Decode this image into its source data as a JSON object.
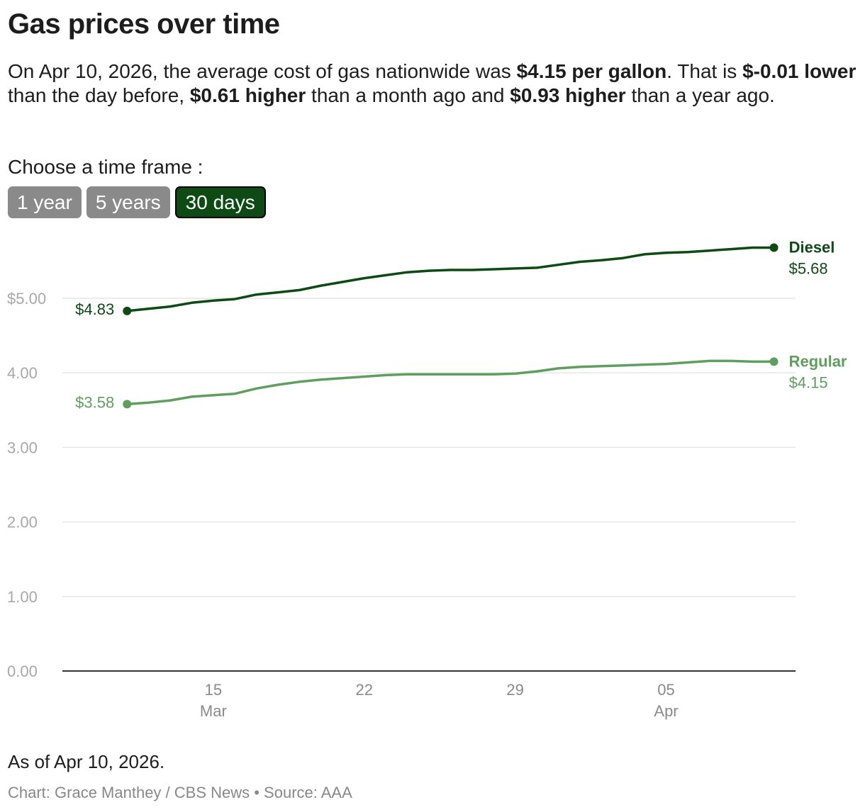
{
  "title": "Gas prices over time",
  "description": {
    "p1": "On Apr 10, 2026, the average cost of gas nationwide was ",
    "b1": "$4.15 per gallon",
    "p2": ". That is ",
    "b2": "$-0.01 lower",
    "p3": " than the day before, ",
    "b3": "$0.61 higher",
    "p4": " than a month ago and ",
    "b4": "$0.93 higher",
    "p5": " than a year ago."
  },
  "timeframe": {
    "label": "Choose a time frame :",
    "options": [
      "1 year",
      "5 years",
      "30 days"
    ],
    "selected": "30 days"
  },
  "note": "As of Apr 10, 2026.",
  "credit": "Chart: Grace Manthey / CBS News • Source: AAA",
  "colors": {
    "diesel": "#0d4a14",
    "regular": "#5f9e5f",
    "grid": "#e6e6e6",
    "axis": "#333333"
  },
  "chart_data": {
    "type": "line",
    "x_label": "",
    "y_label": "",
    "ylim": [
      0,
      5.8
    ],
    "y_ticks": [
      {
        "value": 0,
        "label": "0.00"
      },
      {
        "value": 1,
        "label": "1.00"
      },
      {
        "value": 2,
        "label": "2.00"
      },
      {
        "value": 3,
        "label": "3.00"
      },
      {
        "value": 4,
        "label": "4.00"
      },
      {
        "value": 5,
        "label": "$5.00"
      }
    ],
    "x": [
      "2026-03-11",
      "2026-03-12",
      "2026-03-13",
      "2026-03-14",
      "2026-03-15",
      "2026-03-16",
      "2026-03-17",
      "2026-03-18",
      "2026-03-19",
      "2026-03-20",
      "2026-03-21",
      "2026-03-22",
      "2026-03-23",
      "2026-03-24",
      "2026-03-25",
      "2026-03-26",
      "2026-03-27",
      "2026-03-28",
      "2026-03-29",
      "2026-03-30",
      "2026-03-31",
      "2026-04-01",
      "2026-04-02",
      "2026-04-03",
      "2026-04-04",
      "2026-04-05",
      "2026-04-06",
      "2026-04-07",
      "2026-04-08",
      "2026-04-09",
      "2026-04-10"
    ],
    "xlim": [
      "2026-03-08",
      "2026-04-11"
    ],
    "x_ticks": [
      {
        "date": "2026-03-15",
        "label": "15",
        "sublabel": "Mar"
      },
      {
        "date": "2026-03-22",
        "label": "22",
        "sublabel": ""
      },
      {
        "date": "2026-03-29",
        "label": "29",
        "sublabel": ""
      },
      {
        "date": "2026-04-05",
        "label": "05",
        "sublabel": "Apr"
      }
    ],
    "series": [
      {
        "name": "Diesel",
        "key": "diesel",
        "start_label": "$4.83",
        "end_label": "$5.68",
        "values": [
          4.83,
          4.86,
          4.89,
          4.94,
          4.97,
          4.99,
          5.05,
          5.08,
          5.11,
          5.17,
          5.22,
          5.27,
          5.31,
          5.35,
          5.37,
          5.38,
          5.38,
          5.39,
          5.4,
          5.41,
          5.45,
          5.49,
          5.51,
          5.54,
          5.59,
          5.61,
          5.62,
          5.64,
          5.66,
          5.68,
          5.68
        ]
      },
      {
        "name": "Regular",
        "key": "regular",
        "start_label": "$3.58",
        "end_label": "$4.15",
        "values": [
          3.58,
          3.6,
          3.63,
          3.68,
          3.7,
          3.72,
          3.79,
          3.84,
          3.88,
          3.91,
          3.93,
          3.95,
          3.97,
          3.98,
          3.98,
          3.98,
          3.98,
          3.98,
          3.99,
          4.02,
          4.06,
          4.08,
          4.09,
          4.1,
          4.11,
          4.12,
          4.14,
          4.16,
          4.16,
          4.15,
          4.15
        ]
      }
    ]
  }
}
